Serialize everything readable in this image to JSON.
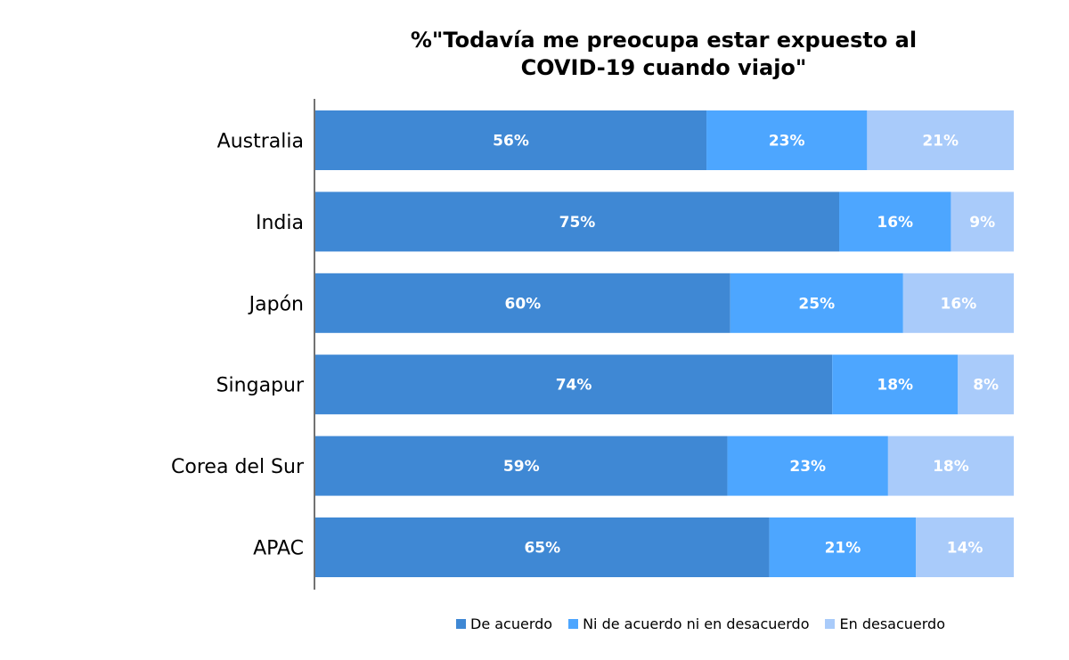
{
  "chart_data": {
    "type": "bar",
    "orientation": "horizontal",
    "stacked": true,
    "title_lines": [
      "%\"Todavía me preocupa estar expuesto al",
      "COVID-19 cuando viajo\""
    ],
    "categories": [
      "Australia",
      "India",
      "Japón",
      "Singapur",
      "Corea del Sur",
      "APAC"
    ],
    "series": [
      {
        "name": "De acuerdo",
        "color": "#3f88d4",
        "values": [
          56,
          75,
          60,
          74,
          59,
          65
        ]
      },
      {
        "name": "Ni de acuerdo ni en desacuerdo",
        "color": "#4da6ff",
        "values": [
          23,
          16,
          25,
          18,
          23,
          21
        ]
      },
      {
        "name": "En desacuerdo",
        "color": "#a9cbfa",
        "values": [
          21,
          9,
          16,
          8,
          18,
          14
        ]
      }
    ],
    "value_suffix": "%",
    "grid": false,
    "legend_position": "bottom"
  }
}
